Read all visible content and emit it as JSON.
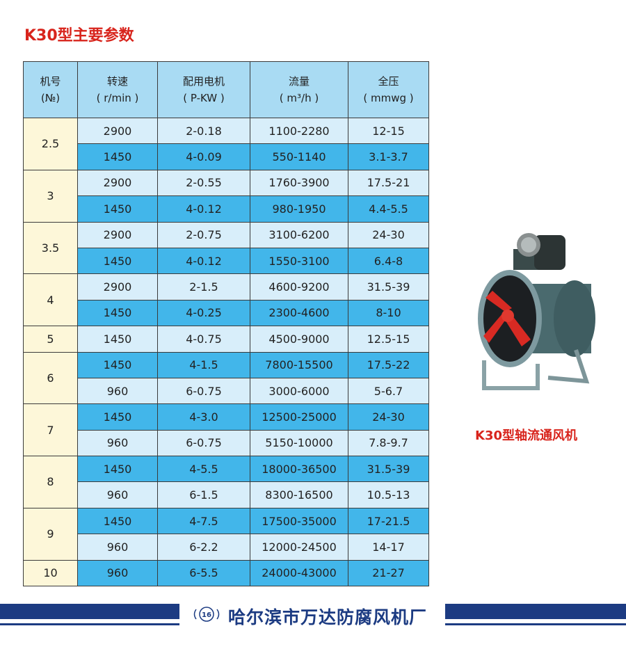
{
  "title": "K30型主要参数",
  "table": {
    "headers": [
      {
        "name": "机号",
        "unit": "(№)"
      },
      {
        "name": "转速",
        "unit": "( r/min )"
      },
      {
        "name": "配用电机",
        "unit": "( P-KW )"
      },
      {
        "name": "流量",
        "unit": "( m³/h )"
      },
      {
        "name": "全压",
        "unit": "( mmwg )"
      }
    ],
    "groups": [
      {
        "no": "2.5",
        "rows": [
          [
            "2900",
            "2-0.18",
            "1100-2280",
            "12-15",
            "light"
          ],
          [
            "1450",
            "4-0.09",
            "550-1140",
            "3.1-3.7",
            "dark"
          ]
        ]
      },
      {
        "no": "3",
        "rows": [
          [
            "2900",
            "2-0.55",
            "1760-3900",
            "17.5-21",
            "light"
          ],
          [
            "1450",
            "4-0.12",
            "980-1950",
            "4.4-5.5",
            "dark"
          ]
        ]
      },
      {
        "no": "3.5",
        "rows": [
          [
            "2900",
            "2-0.75",
            "3100-6200",
            "24-30",
            "light"
          ],
          [
            "1450",
            "4-0.12",
            "1550-3100",
            "6.4-8",
            "dark"
          ]
        ]
      },
      {
        "no": "4",
        "rows": [
          [
            "2900",
            "2-1.5",
            "4600-9200",
            "31.5-39",
            "light"
          ],
          [
            "1450",
            "4-0.25",
            "2300-4600",
            "8-10",
            "dark"
          ]
        ]
      },
      {
        "no": "5",
        "rows": [
          [
            "1450",
            "4-0.75",
            "4500-9000",
            "12.5-15",
            "light"
          ]
        ]
      },
      {
        "no": "6",
        "rows": [
          [
            "1450",
            "4-1.5",
            "7800-15500",
            "17.5-22",
            "dark"
          ],
          [
            "960",
            "6-0.75",
            "3000-6000",
            "5-6.7",
            "light"
          ]
        ]
      },
      {
        "no": "7",
        "rows": [
          [
            "1450",
            "4-3.0",
            "12500-25000",
            "24-30",
            "dark"
          ],
          [
            "960",
            "6-0.75",
            "5150-10000",
            "7.8-9.7",
            "light"
          ]
        ]
      },
      {
        "no": "8",
        "rows": [
          [
            "1450",
            "4-5.5",
            "18000-36500",
            "31.5-39",
            "dark"
          ],
          [
            "960",
            "6-1.5",
            "8300-16500",
            "10.5-13",
            "light"
          ]
        ]
      },
      {
        "no": "9",
        "rows": [
          [
            "1450",
            "4-7.5",
            "17500-35000",
            "17-21.5",
            "dark"
          ],
          [
            "960",
            "6-2.2",
            "12000-24500",
            "14-17",
            "light"
          ]
        ]
      },
      {
        "no": "10",
        "rows": [
          [
            "960",
            "6-5.5",
            "24000-43000",
            "21-27",
            "dark"
          ]
        ]
      }
    ]
  },
  "product": {
    "caption": "K30型轴流通风机",
    "image": "axial-fan-photo"
  },
  "footer": {
    "page_number": "16",
    "company": "哈尔滨市万达防腐风机厂"
  },
  "colors": {
    "title": "#d8241c",
    "header": "#a9dbf3",
    "row_light": "#d8eefa",
    "row_dark": "#42b6ea",
    "machine_no": "#fdf7d9",
    "footer": "#1c3b82"
  }
}
